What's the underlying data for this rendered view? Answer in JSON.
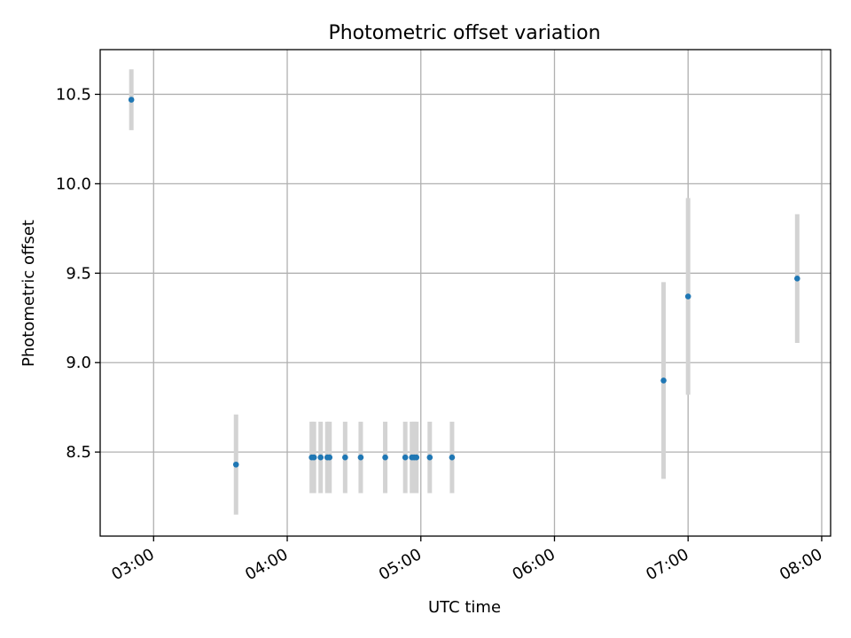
{
  "chart_data": {
    "type": "scatter",
    "title": "Photometric offset variation",
    "xlabel": "UTC time",
    "ylabel": "Photometric offset",
    "x_tick_labels": [
      "03:00",
      "04:00",
      "05:00",
      "06:00",
      "07:00",
      "08:00"
    ],
    "y_tick_labels": [
      "8.5",
      "9.0",
      "9.5",
      "10.0",
      "10.5"
    ],
    "xlim": [
      "02:36",
      "08:04"
    ],
    "ylim": [
      8.03,
      10.75
    ],
    "grid": true,
    "point_color": "#1f77b4",
    "errorbar_color": "#d3d3d3",
    "points": [
      {
        "x": "02:50",
        "y": 10.47,
        "err": 0.17
      },
      {
        "x": "03:37",
        "y": 8.43,
        "err": 0.28
      },
      {
        "x": "04:11",
        "y": 8.47,
        "err": 0.2
      },
      {
        "x": "04:12",
        "y": 8.47,
        "err": 0.2
      },
      {
        "x": "04:15",
        "y": 8.47,
        "err": 0.2
      },
      {
        "x": "04:18",
        "y": 8.47,
        "err": 0.2
      },
      {
        "x": "04:19",
        "y": 8.47,
        "err": 0.2
      },
      {
        "x": "04:26",
        "y": 8.47,
        "err": 0.2
      },
      {
        "x": "04:33",
        "y": 8.47,
        "err": 0.2
      },
      {
        "x": "04:44",
        "y": 8.47,
        "err": 0.2
      },
      {
        "x": "04:53",
        "y": 8.47,
        "err": 0.2
      },
      {
        "x": "04:56",
        "y": 8.47,
        "err": 0.2
      },
      {
        "x": "04:57",
        "y": 8.47,
        "err": 0.2
      },
      {
        "x": "04:58",
        "y": 8.47,
        "err": 0.2
      },
      {
        "x": "05:04",
        "y": 8.47,
        "err": 0.2
      },
      {
        "x": "05:14",
        "y": 8.47,
        "err": 0.2
      },
      {
        "x": "06:49",
        "y": 8.9,
        "err": 0.55
      },
      {
        "x": "07:00",
        "y": 9.37,
        "err": 0.55
      },
      {
        "x": "07:49",
        "y": 9.47,
        "err": 0.36
      }
    ]
  }
}
